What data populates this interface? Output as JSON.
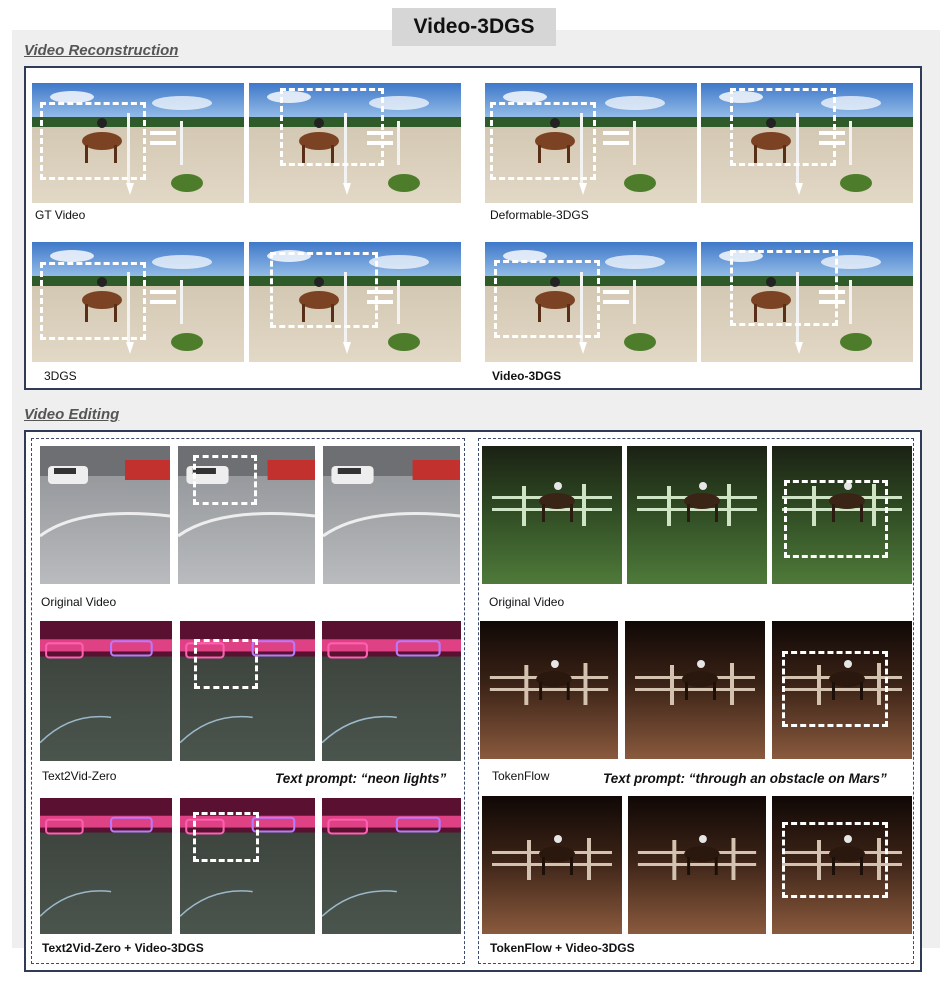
{
  "title": "Video-3DGS",
  "sections": {
    "reconstruction": "Video Reconstruction",
    "editing": "Video Editing"
  },
  "reconstruction_captions": {
    "gt": "GT Video",
    "deformable": "Deformable-3DGS",
    "gs3d": "3DGS",
    "video3dgs": "Video-3DGS"
  },
  "editing_left": {
    "original": "Original Video",
    "baseline": "Text2Vid-Zero",
    "prompt": "Text prompt: “neon lights”",
    "ours": "Text2Vid-Zero + Video-3DGS"
  },
  "editing_right": {
    "original": "Original Video",
    "baseline": "TokenFlow",
    "prompt": "Text prompt: “through an obstacle on Mars”",
    "ours": "TokenFlow + Video-3DGS"
  },
  "colors": {
    "frame_border": "#2f3b59",
    "title_bg": "#d6d6d6",
    "panel_bg": "#efefef",
    "highlight_box": "#ffffff"
  }
}
